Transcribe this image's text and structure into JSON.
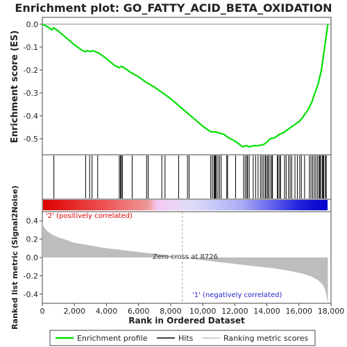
{
  "chart_data": {
    "type": "line",
    "title": "Enrichment plot: GO_FATTY_ACID_BETA_OXIDATION",
    "xlabel": "Rank in Ordered Dataset",
    "top_ylabel": "Enrichment score (ES)",
    "bottom_ylabel": "Ranked list metric (Signal2Noise)",
    "xlim": [
      0,
      18000
    ],
    "x_ticks": [
      0,
      2000,
      4000,
      6000,
      8000,
      10000,
      12000,
      14000,
      16000,
      18000
    ],
    "x_tick_labels": [
      "0",
      "2,000",
      "4,000",
      "6,000",
      "8,000",
      "10,000",
      "12,000",
      "14,000",
      "16,000",
      "18,000"
    ],
    "es_ylim": [
      -0.57,
      0.03
    ],
    "es_ticks": [
      0.0,
      -0.1,
      -0.2,
      -0.3,
      -0.4,
      -0.5
    ],
    "es_tick_labels": [
      "0.0",
      "-0.1",
      "-0.2",
      "-0.3",
      "-0.4",
      "-0.5"
    ],
    "metric_ylim": [
      -0.5,
      0.5
    ],
    "metric_ticks": [
      0.4,
      0.2,
      0.0,
      -0.2,
      -0.4
    ],
    "metric_tick_labels": [
      "0.4",
      "0.2",
      "0.0",
      "-0.2",
      "-0.4"
    ],
    "n_genes": 17800,
    "zero_cross": 8726,
    "zero_cross_label": "Zero cross at 8726",
    "pos_label": "'2' (positively correlated)",
    "neg_label": "'1' (negatively correlated)",
    "enrichment_profile": {
      "x": [
        0,
        300,
        600,
        700,
        1000,
        1500,
        2000,
        2500,
        2700,
        2800,
        3000,
        3100,
        3300,
        3500,
        4000,
        4500,
        4800,
        4900,
        5000,
        5200,
        5500,
        6000,
        6500,
        7000,
        7500,
        8000,
        8500,
        9000,
        9500,
        10000,
        10500,
        10800,
        11000,
        11300,
        11600,
        12000,
        12300,
        12500,
        12700,
        12900,
        13200,
        13500,
        13800,
        14000,
        14200,
        14500,
        14800,
        15000,
        15300,
        15500,
        15800,
        16000,
        16200,
        16400,
        16600,
        16800,
        17000,
        17200,
        17400,
        17500,
        17600,
        17700,
        17800
      ],
      "y": [
        0.0,
        -0.01,
        -0.025,
        -0.015,
        -0.03,
        -0.06,
        -0.09,
        -0.115,
        -0.12,
        -0.115,
        -0.12,
        -0.115,
        -0.12,
        -0.125,
        -0.15,
        -0.18,
        -0.19,
        -0.185,
        -0.185,
        -0.195,
        -0.21,
        -0.23,
        -0.255,
        -0.275,
        -0.3,
        -0.325,
        -0.355,
        -0.385,
        -0.415,
        -0.445,
        -0.47,
        -0.47,
        -0.475,
        -0.48,
        -0.495,
        -0.51,
        -0.525,
        -0.535,
        -0.53,
        -0.535,
        -0.53,
        -0.53,
        -0.525,
        -0.515,
        -0.5,
        -0.495,
        -0.48,
        -0.475,
        -0.46,
        -0.45,
        -0.435,
        -0.425,
        -0.41,
        -0.39,
        -0.37,
        -0.34,
        -0.3,
        -0.26,
        -0.2,
        -0.15,
        -0.1,
        -0.05,
        0.0
      ]
    },
    "hits": [
      720,
      2700,
      2950,
      3100,
      3450,
      4800,
      4870,
      4930,
      4990,
      5600,
      6500,
      6600,
      7450,
      7650,
      8500,
      9050,
      9150,
      10500,
      10600,
      10700,
      10750,
      10800,
      10850,
      10950,
      11050,
      11150,
      11500,
      11550,
      12050,
      12550,
      12650,
      12750,
      12800,
      12900,
      13150,
      13300,
      13450,
      13600,
      13700,
      13800,
      13900,
      13950,
      14050,
      14100,
      14200,
      14300,
      14350,
      14650,
      14700,
      14800,
      14850,
      15100,
      15200,
      15350,
      15450,
      15550,
      15750,
      15900,
      16050,
      16150,
      16350,
      16650,
      16750,
      16850,
      16950,
      17050,
      17150,
      17250,
      17300,
      17350,
      17450,
      17500,
      17550,
      17650,
      17700
    ],
    "metric": {
      "x": [
        0,
        100,
        300,
        600,
        1000,
        1500,
        2000,
        3000,
        4000,
        5000,
        6000,
        7000,
        8000,
        8726,
        9500,
        10500,
        11500,
        12500,
        13500,
        14500,
        15500,
        16300,
        16800,
        17200,
        17500,
        17650,
        17750,
        17800
      ],
      "y": [
        0.38,
        0.33,
        0.29,
        0.25,
        0.22,
        0.19,
        0.16,
        0.13,
        0.1,
        0.08,
        0.06,
        0.04,
        0.02,
        0.0,
        -0.02,
        -0.04,
        -0.06,
        -0.08,
        -0.1,
        -0.12,
        -0.15,
        -0.18,
        -0.21,
        -0.25,
        -0.3,
        -0.36,
        -0.45,
        -0.5
      ]
    },
    "series": [
      {
        "name": "Enrichment profile",
        "color": "#00e000"
      },
      {
        "name": "Hits",
        "color": "#000000"
      },
      {
        "name": "Ranking metric scores",
        "color": "#c0c0c0"
      }
    ],
    "legend_position": "bottom"
  }
}
